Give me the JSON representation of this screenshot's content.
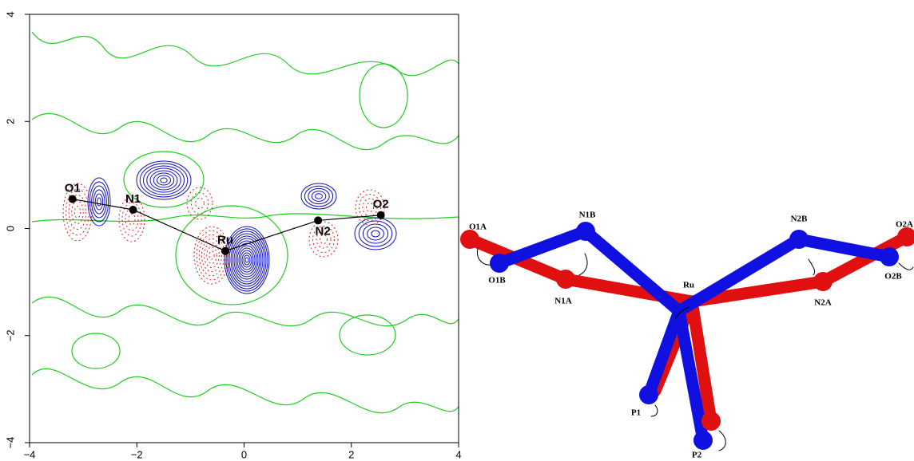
{
  "chart_data": {
    "type": "scatter",
    "labels": [
      "O1",
      "N1",
      "Ru",
      "N2",
      "O2"
    ],
    "x": [
      -3.2,
      -2.07,
      -0.35,
      1.38,
      2.55
    ],
    "y": [
      0.55,
      0.35,
      -0.42,
      0.15,
      0.25
    ],
    "color": "#000000",
    "xlim": [
      -4,
      4
    ],
    "ylim": [
      -4,
      4
    ],
    "xticks": [
      {
        "value": -4,
        "label": "−4"
      },
      {
        "value": -2,
        "label": "−2"
      },
      0,
      2,
      4
    ],
    "yticks": [
      {
        "value": -4,
        "label": "−4"
      },
      {
        "value": -2,
        "label": "−2"
      },
      0,
      2,
      4
    ]
  },
  "diagram": {
    "labels": [
      "O1A",
      "N1B",
      "O1B",
      "N1A",
      "Ru",
      "N2B",
      "O2A",
      "N2A",
      "O2B",
      "P1",
      "P2"
    ]
  }
}
